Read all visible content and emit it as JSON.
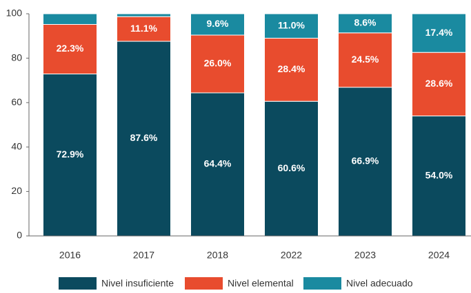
{
  "chart_data": {
    "type": "stacked_bar",
    "categories": [
      "2016",
      "2017",
      "2018",
      "2022",
      "2023",
      "2024"
    ],
    "series": [
      {
        "name": "Nivel insuficiente",
        "color": "#0b4a5e",
        "values": [
          72.9,
          87.6,
          64.4,
          60.6,
          66.9,
          54.0
        ],
        "value_labels": [
          "72.9%",
          "87.6%",
          "64.4%",
          "60.6%",
          "66.9%",
          "54.0%"
        ]
      },
      {
        "name": "Nivel elemental",
        "color": "#e84c2e",
        "values": [
          22.3,
          11.1,
          26.0,
          28.4,
          24.5,
          28.6
        ],
        "value_labels": [
          "22.3%",
          "11.1%",
          "26.0%",
          "28.4%",
          "24.5%",
          "28.6%"
        ]
      },
      {
        "name": "Nivel adecuado",
        "color": "#1a8aa0",
        "values": [
          4.8,
          1.3,
          9.6,
          11.0,
          8.6,
          17.4
        ],
        "value_labels": [
          null,
          null,
          "9.6%",
          "11.0%",
          "8.6%",
          "17.4%"
        ]
      }
    ],
    "ylim": [
      0,
      100
    ],
    "yticks": [
      0,
      20,
      40,
      60,
      80,
      100
    ],
    "legend": "bottom"
  }
}
